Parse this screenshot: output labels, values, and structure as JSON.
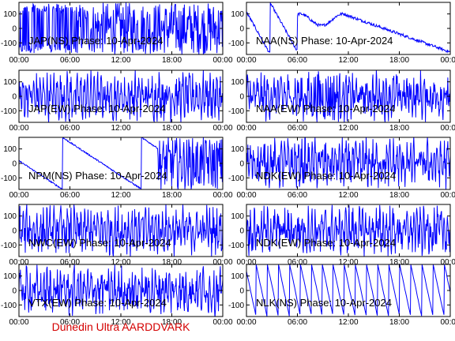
{
  "footer": {
    "text": "Dunedin Ultra AARDDVARK",
    "color": "#d40000"
  },
  "colors": {
    "trace": "#0000ff",
    "axes": "#000000",
    "background": "#ffffff"
  },
  "chart_data": [
    {
      "type": "line",
      "title": "JAP(NS) Phase: 10-Apr-2024",
      "pattern": "dense",
      "x_ticks": [
        "00:00",
        "06:00",
        "12:00",
        "18:00",
        "00:00"
      ],
      "xlim": [
        0,
        24
      ],
      "y_ticks": [
        100,
        0,
        -100
      ],
      "ylim": [
        -180,
        180
      ],
      "grid": false
    },
    {
      "type": "line",
      "title": "NAA(NS) Phase: 10-Apr-2024",
      "pattern": "drift",
      "x_ticks": [
        "00:00",
        "06:00",
        "12:00",
        "18:00",
        "00:00"
      ],
      "xlim": [
        0,
        24
      ],
      "y_ticks": [
        100,
        0,
        -100
      ],
      "ylim": [
        -180,
        180
      ],
      "grid": false
    },
    {
      "type": "line",
      "title": "JAP(EW) Phase: 10-Apr-2024",
      "pattern": "noisy",
      "x_ticks": [
        "00:00",
        "06:00",
        "12:00",
        "18:00",
        "00:00"
      ],
      "xlim": [
        0,
        24
      ],
      "y_ticks": [
        100,
        0,
        -100
      ],
      "ylim": [
        -180,
        180
      ],
      "grid": false
    },
    {
      "type": "line",
      "title": "NAA(EW) Phase: 10-Apr-2024",
      "pattern": "noisy-block",
      "x_ticks": [
        "00:00",
        "06:00",
        "12:00",
        "18:00",
        "00:00"
      ],
      "xlim": [
        0,
        24
      ],
      "y_ticks": [
        100,
        0,
        -100
      ],
      "ylim": [
        -180,
        180
      ],
      "grid": false
    },
    {
      "type": "line",
      "title": "NPM(NS) Phase: 10-Apr-2024",
      "pattern": "slopes",
      "x_ticks": [
        "00:00",
        "06:00",
        "12:00",
        "18:00",
        "00:00"
      ],
      "xlim": [
        0,
        24
      ],
      "y_ticks": [
        100,
        0,
        -100
      ],
      "ylim": [
        -180,
        180
      ],
      "grid": false
    },
    {
      "type": "line",
      "title": "NDK(EW) Phase: 10-Apr-2024",
      "pattern": "noisy",
      "x_ticks": [
        "00:00",
        "06:00",
        "12:00",
        "18:00",
        "00:00"
      ],
      "xlim": [
        0,
        24
      ],
      "y_ticks": [
        100,
        0,
        -100
      ],
      "ylim": [
        -180,
        180
      ],
      "grid": false
    },
    {
      "type": "line",
      "title": "NWC(EW) Phase: 10-Apr-2024",
      "pattern": "noisy",
      "x_ticks": [
        "00:00",
        "06:00",
        "12:00",
        "18:00",
        "00:00"
      ],
      "xlim": [
        0,
        24
      ],
      "y_ticks": [
        100,
        0,
        -100
      ],
      "ylim": [
        -180,
        180
      ],
      "grid": false
    },
    {
      "type": "line",
      "title": "NDK(EW) Phase: 10-Apr-2024",
      "pattern": "noisy",
      "x_ticks": [
        "00:00",
        "06:00",
        "12:00",
        "18:00",
        "00:00"
      ],
      "xlim": [
        0,
        24
      ],
      "y_ticks": [
        100,
        0,
        -100
      ],
      "ylim": [
        -180,
        180
      ],
      "grid": false
    },
    {
      "type": "line",
      "title": "VTX(EW) Phase: 10-Apr-2024",
      "pattern": "noisy",
      "x_ticks": [
        "00:00",
        "06:00",
        "12:00",
        "18:00",
        "00:00"
      ],
      "xlim": [
        0,
        24
      ],
      "y_ticks": [
        100,
        0,
        -100
      ],
      "ylim": [
        -180,
        180
      ],
      "grid": false
    },
    {
      "type": "line",
      "title": "NLK(NS) Phase: 10-Apr-2024",
      "pattern": "sawtooth",
      "x_ticks": [
        "00:00",
        "06:00",
        "12:00",
        "18:00",
        "00:00"
      ],
      "xlim": [
        0,
        24
      ],
      "y_ticks": [
        100,
        0,
        -100
      ],
      "ylim": [
        -180,
        180
      ],
      "grid": false
    }
  ]
}
